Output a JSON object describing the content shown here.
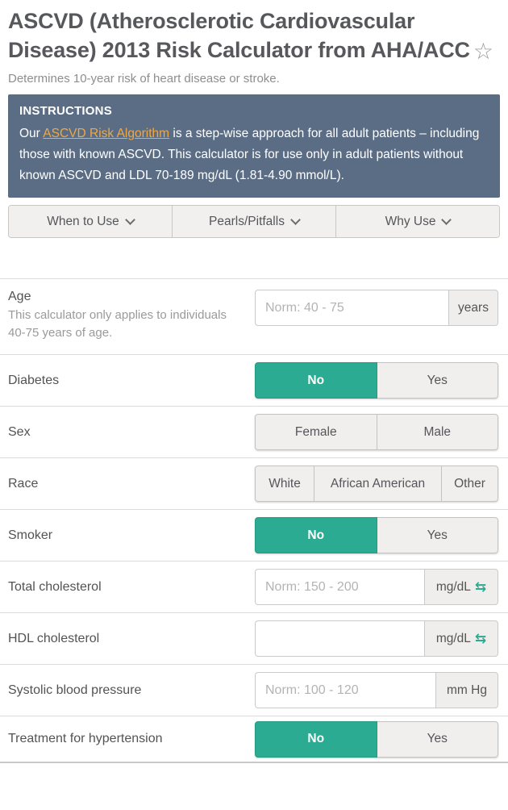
{
  "header": {
    "title": "ASCVD (Atherosclerotic Cardiovascular Disease) 2013 Risk Calculator from AHA/ACC",
    "favorite_star_icon": "☆",
    "subtitle": "Determines 10-year risk of heart disease or stroke."
  },
  "instructions": {
    "heading": "INSTRUCTIONS",
    "text_before_link": "Our ",
    "link_text": "ASCVD Risk Algorithm",
    "text_after_link": " is a step-wise approach for all adult patients – including those with known ASCVD. This calculator is for use only in adult patients without known ASCVD and LDL 70-189 mg/dL (1.81-4.90 mmol/L)."
  },
  "info_tabs": [
    {
      "label": "When to Use"
    },
    {
      "label": "Pearls/Pitfalls"
    },
    {
      "label": "Why Use"
    }
  ],
  "form": {
    "rows": [
      {
        "type": "input",
        "label": "Age",
        "note": "This calculator only applies to individuals 40-75 years of age.",
        "placeholder": "Norm: 40 - 75",
        "value": "",
        "unit": "years"
      },
      {
        "type": "toggle",
        "label": "Diabetes",
        "value": "No",
        "options": [
          {
            "label": "No",
            "selected": true
          },
          {
            "label": "Yes",
            "selected": false
          }
        ]
      },
      {
        "type": "toggle",
        "label": "Sex",
        "value": "",
        "options": [
          {
            "label": "Female",
            "selected": false
          },
          {
            "label": "Male",
            "selected": false
          }
        ]
      },
      {
        "type": "toggle",
        "label": "Race",
        "value": "",
        "options": [
          {
            "label": "White",
            "selected": false
          },
          {
            "label": "African American",
            "selected": false
          },
          {
            "label": "Other",
            "selected": false
          }
        ]
      },
      {
        "type": "toggle",
        "label": "Smoker",
        "value": "No",
        "options": [
          {
            "label": "No",
            "selected": true
          },
          {
            "label": "Yes",
            "selected": false
          }
        ]
      },
      {
        "type": "input",
        "label": "Total cholesterol",
        "placeholder": "Norm: 150 - 200",
        "value": "",
        "unit": "mg/dL",
        "convert_icon": "⇆"
      },
      {
        "type": "input",
        "label": "HDL cholesterol",
        "placeholder": "",
        "value": "",
        "unit": "mg/dL",
        "convert_icon": "⇆"
      },
      {
        "type": "input",
        "label": "Systolic blood pressure",
        "placeholder": "Norm: 100 - 120",
        "value": "",
        "unit": "mm Hg"
      },
      {
        "type": "toggle",
        "label": "Treatment for hypertension",
        "value": "No",
        "options": [
          {
            "label": "No",
            "selected": true
          },
          {
            "label": "Yes",
            "selected": false
          }
        ]
      }
    ]
  },
  "colors": {
    "accent_teal": "#2aab92",
    "instructions_bg": "#5b6d85",
    "link_orange": "#f0a841"
  }
}
